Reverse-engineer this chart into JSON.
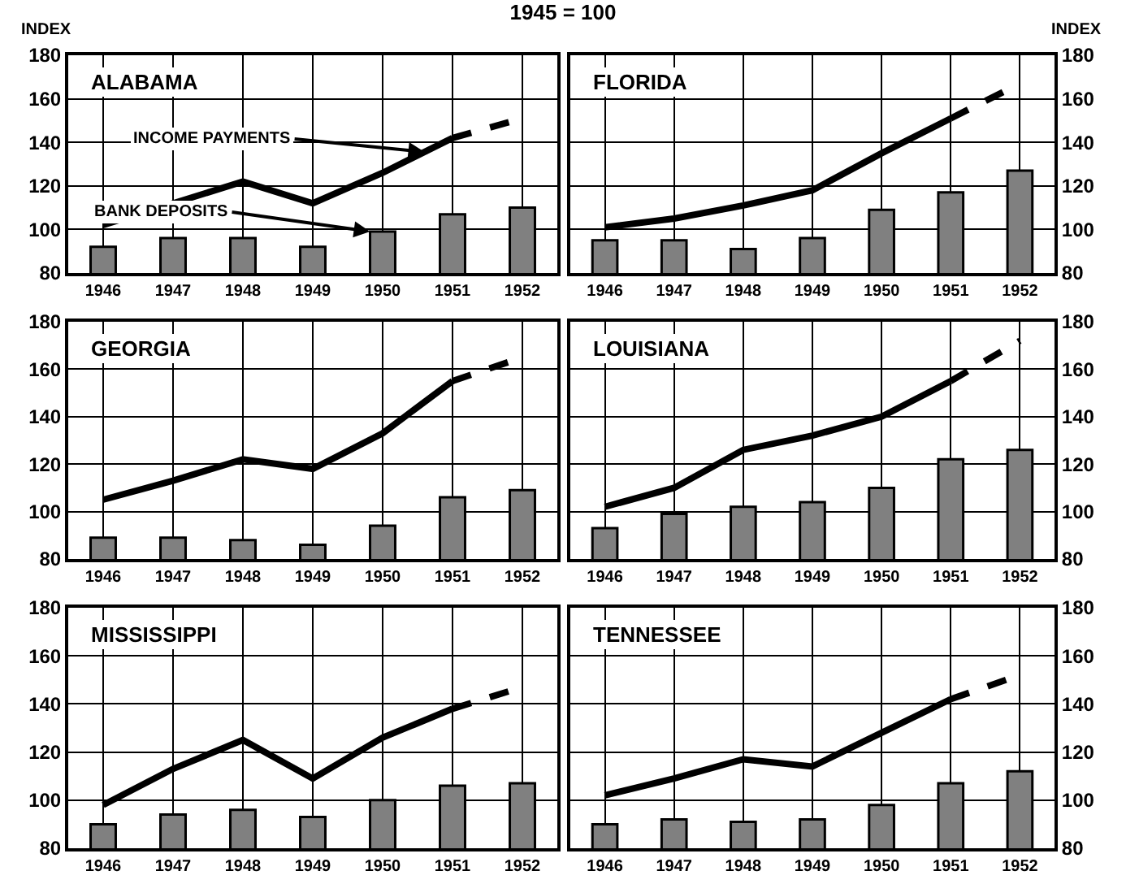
{
  "chart_data": [
    {
      "type": "bar",
      "title": "ALABAMA",
      "ylabel": "INDEX",
      "annotations": [
        "1945 = 100"
      ],
      "categories": [
        "1946",
        "1947",
        "1948",
        "1949",
        "1950",
        "1951",
        "1952"
      ],
      "ylim": [
        80,
        180
      ],
      "yticks": [
        80,
        100,
        120,
        140,
        160,
        180
      ],
      "grid": true,
      "series": [
        {
          "name": "BANK DEPOSITS",
          "color": "#808080",
          "values": [
            92,
            96,
            96,
            92,
            99,
            107,
            110
          ]
        },
        {
          "type": "line",
          "name": "INCOME PAYMENTS",
          "color": "#000000",
          "line_style": "solid",
          "values": [
            102,
            112,
            122,
            112,
            126,
            142,
            null
          ]
        },
        {
          "type": "line",
          "color": "#000000",
          "line_style": "dashed",
          "values": [
            null,
            null,
            null,
            null,
            null,
            142,
            151
          ]
        }
      ]
    },
    {
      "type": "bar",
      "title": "FLORIDA",
      "ylabel": "INDEX",
      "categories": [
        "1946",
        "1947",
        "1948",
        "1949",
        "1950",
        "1951",
        "1952"
      ],
      "ylim": [
        80,
        180
      ],
      "yticks": [
        80,
        100,
        120,
        140,
        160,
        180
      ],
      "grid": true,
      "series": [
        {
          "color": "#808080",
          "values": [
            95,
            95,
            91,
            96,
            109,
            117,
            127
          ]
        },
        {
          "type": "line",
          "color": "#000000",
          "line_style": "solid",
          "values": [
            101,
            105,
            111,
            118,
            135,
            151,
            null
          ]
        },
        {
          "type": "line",
          "color": "#000000",
          "line_style": "dashed",
          "values": [
            null,
            null,
            null,
            null,
            null,
            151,
            167
          ]
        }
      ]
    },
    {
      "type": "bar",
      "title": "GEORGIA",
      "categories": [
        "1946",
        "1947",
        "1948",
        "1949",
        "1950",
        "1951",
        "1952"
      ],
      "ylim": [
        80,
        180
      ],
      "yticks": [
        80,
        100,
        120,
        140,
        160,
        180
      ],
      "grid": true,
      "series": [
        {
          "color": "#808080",
          "values": [
            89,
            89,
            88,
            86,
            94,
            106,
            109
          ]
        },
        {
          "type": "line",
          "color": "#000000",
          "line_style": "solid",
          "values": [
            105,
            113,
            122,
            118,
            133,
            155,
            null
          ]
        },
        {
          "type": "line",
          "color": "#000000",
          "line_style": "dashed",
          "values": [
            null,
            null,
            null,
            null,
            null,
            155,
            165
          ]
        }
      ]
    },
    {
      "type": "bar",
      "title": "LOUISIANA",
      "categories": [
        "1946",
        "1947",
        "1948",
        "1949",
        "1950",
        "1951",
        "1952"
      ],
      "ylim": [
        80,
        180
      ],
      "yticks": [
        80,
        100,
        120,
        140,
        160,
        180
      ],
      "grid": true,
      "series": [
        {
          "color": "#808080",
          "values": [
            93,
            99,
            102,
            104,
            110,
            122,
            126
          ]
        },
        {
          "type": "line",
          "color": "#000000",
          "line_style": "solid",
          "values": [
            102,
            110,
            126,
            132,
            140,
            155,
            null
          ]
        },
        {
          "type": "line",
          "color": "#000000",
          "line_style": "dashed",
          "values": [
            null,
            null,
            null,
            null,
            null,
            155,
            172
          ]
        }
      ]
    },
    {
      "type": "bar",
      "title": "MISSISSIPPI",
      "categories": [
        "1946",
        "1947",
        "1948",
        "1949",
        "1950",
        "1951",
        "1952"
      ],
      "ylim": [
        80,
        180
      ],
      "yticks": [
        80,
        100,
        120,
        140,
        160,
        180
      ],
      "grid": true,
      "series": [
        {
          "color": "#808080",
          "values": [
            90,
            94,
            96,
            93,
            100,
            106,
            107
          ]
        },
        {
          "type": "line",
          "color": "#000000",
          "line_style": "solid",
          "values": [
            98,
            113,
            125,
            109,
            126,
            138,
            null
          ]
        },
        {
          "type": "line",
          "color": "#000000",
          "line_style": "dashed",
          "values": [
            null,
            null,
            null,
            null,
            null,
            138,
            147
          ]
        }
      ]
    },
    {
      "type": "bar",
      "title": "TENNESSEE",
      "categories": [
        "1946",
        "1947",
        "1948",
        "1949",
        "1950",
        "1951",
        "1952"
      ],
      "ylim": [
        80,
        180
      ],
      "yticks": [
        80,
        100,
        120,
        140,
        160,
        180
      ],
      "grid": true,
      "series": [
        {
          "color": "#808080",
          "values": [
            90,
            92,
            91,
            92,
            98,
            107,
            112
          ]
        },
        {
          "type": "line",
          "color": "#000000",
          "line_style": "solid",
          "values": [
            102,
            109,
            117,
            114,
            128,
            142,
            null
          ]
        },
        {
          "type": "line",
          "color": "#000000",
          "line_style": "dashed",
          "values": [
            null,
            null,
            null,
            null,
            null,
            142,
            152
          ]
        }
      ]
    }
  ]
}
